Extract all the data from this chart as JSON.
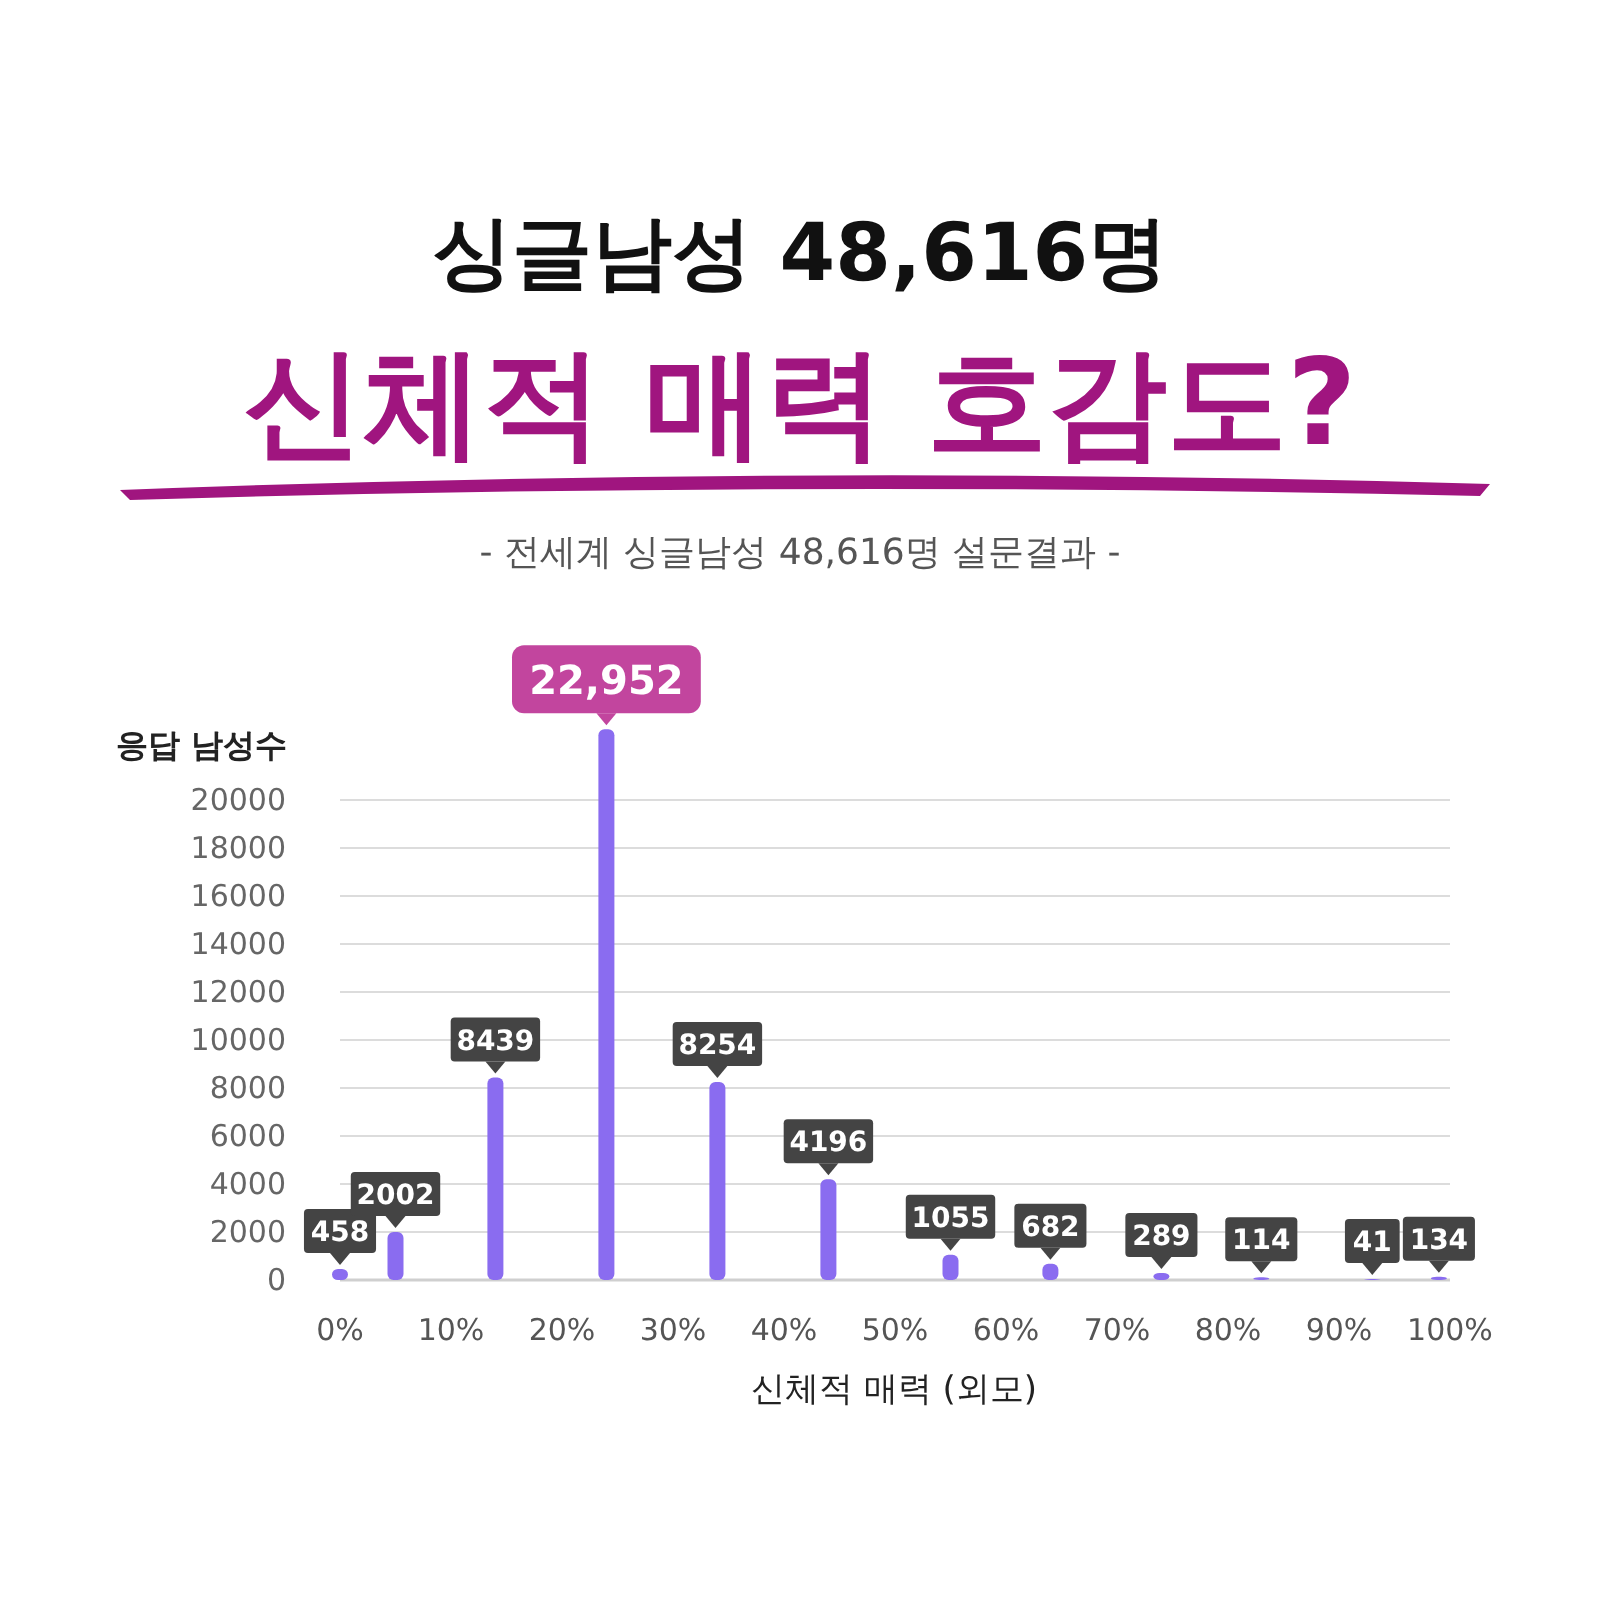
{
  "chart_data": {
    "type": "bar",
    "title": "싱글남성 48,616명",
    "subtitle": "신체적 매력 호감도?",
    "annotations": [
      "- 전세계 싱글남성  48,616명 설문결과 -"
    ],
    "xlabel": "신체적 매력 (외모)",
    "ylabel": "응답 남성수",
    "x": [
      0,
      5,
      14,
      24,
      34,
      44,
      55,
      64,
      74,
      83,
      93,
      99
    ],
    "values": [
      458,
      2002,
      8439,
      22952,
      8254,
      4196,
      1055,
      682,
      289,
      114,
      41,
      134
    ],
    "value_labels": [
      "458",
      "2002",
      "8439",
      "22,952",
      "8254",
      "4196",
      "1055",
      "682",
      "289",
      "114",
      "41",
      "134"
    ],
    "color": "#8a6cf0",
    "xlim": [
      0,
      100
    ],
    "xticks": [
      {
        "value": 0,
        "label": "0%"
      },
      {
        "value": 10,
        "label": "10%"
      },
      {
        "value": 20,
        "label": "20%"
      },
      {
        "value": 30,
        "label": "30%"
      },
      {
        "value": 40,
        "label": "40%"
      },
      {
        "value": 50,
        "label": "50%"
      },
      {
        "value": 60,
        "label": "60%"
      },
      {
        "value": 70,
        "label": "70%"
      },
      {
        "value": 80,
        "label": "80%"
      },
      {
        "value": 90,
        "label": "90%"
      },
      {
        "value": 100,
        "label": "100%"
      }
    ],
    "ylim": [
      0,
      23000
    ],
    "yticks": [
      0,
      2000,
      4000,
      6000,
      8000,
      10000,
      12000,
      14000,
      16000,
      18000,
      20000
    ],
    "grid": "y"
  }
}
